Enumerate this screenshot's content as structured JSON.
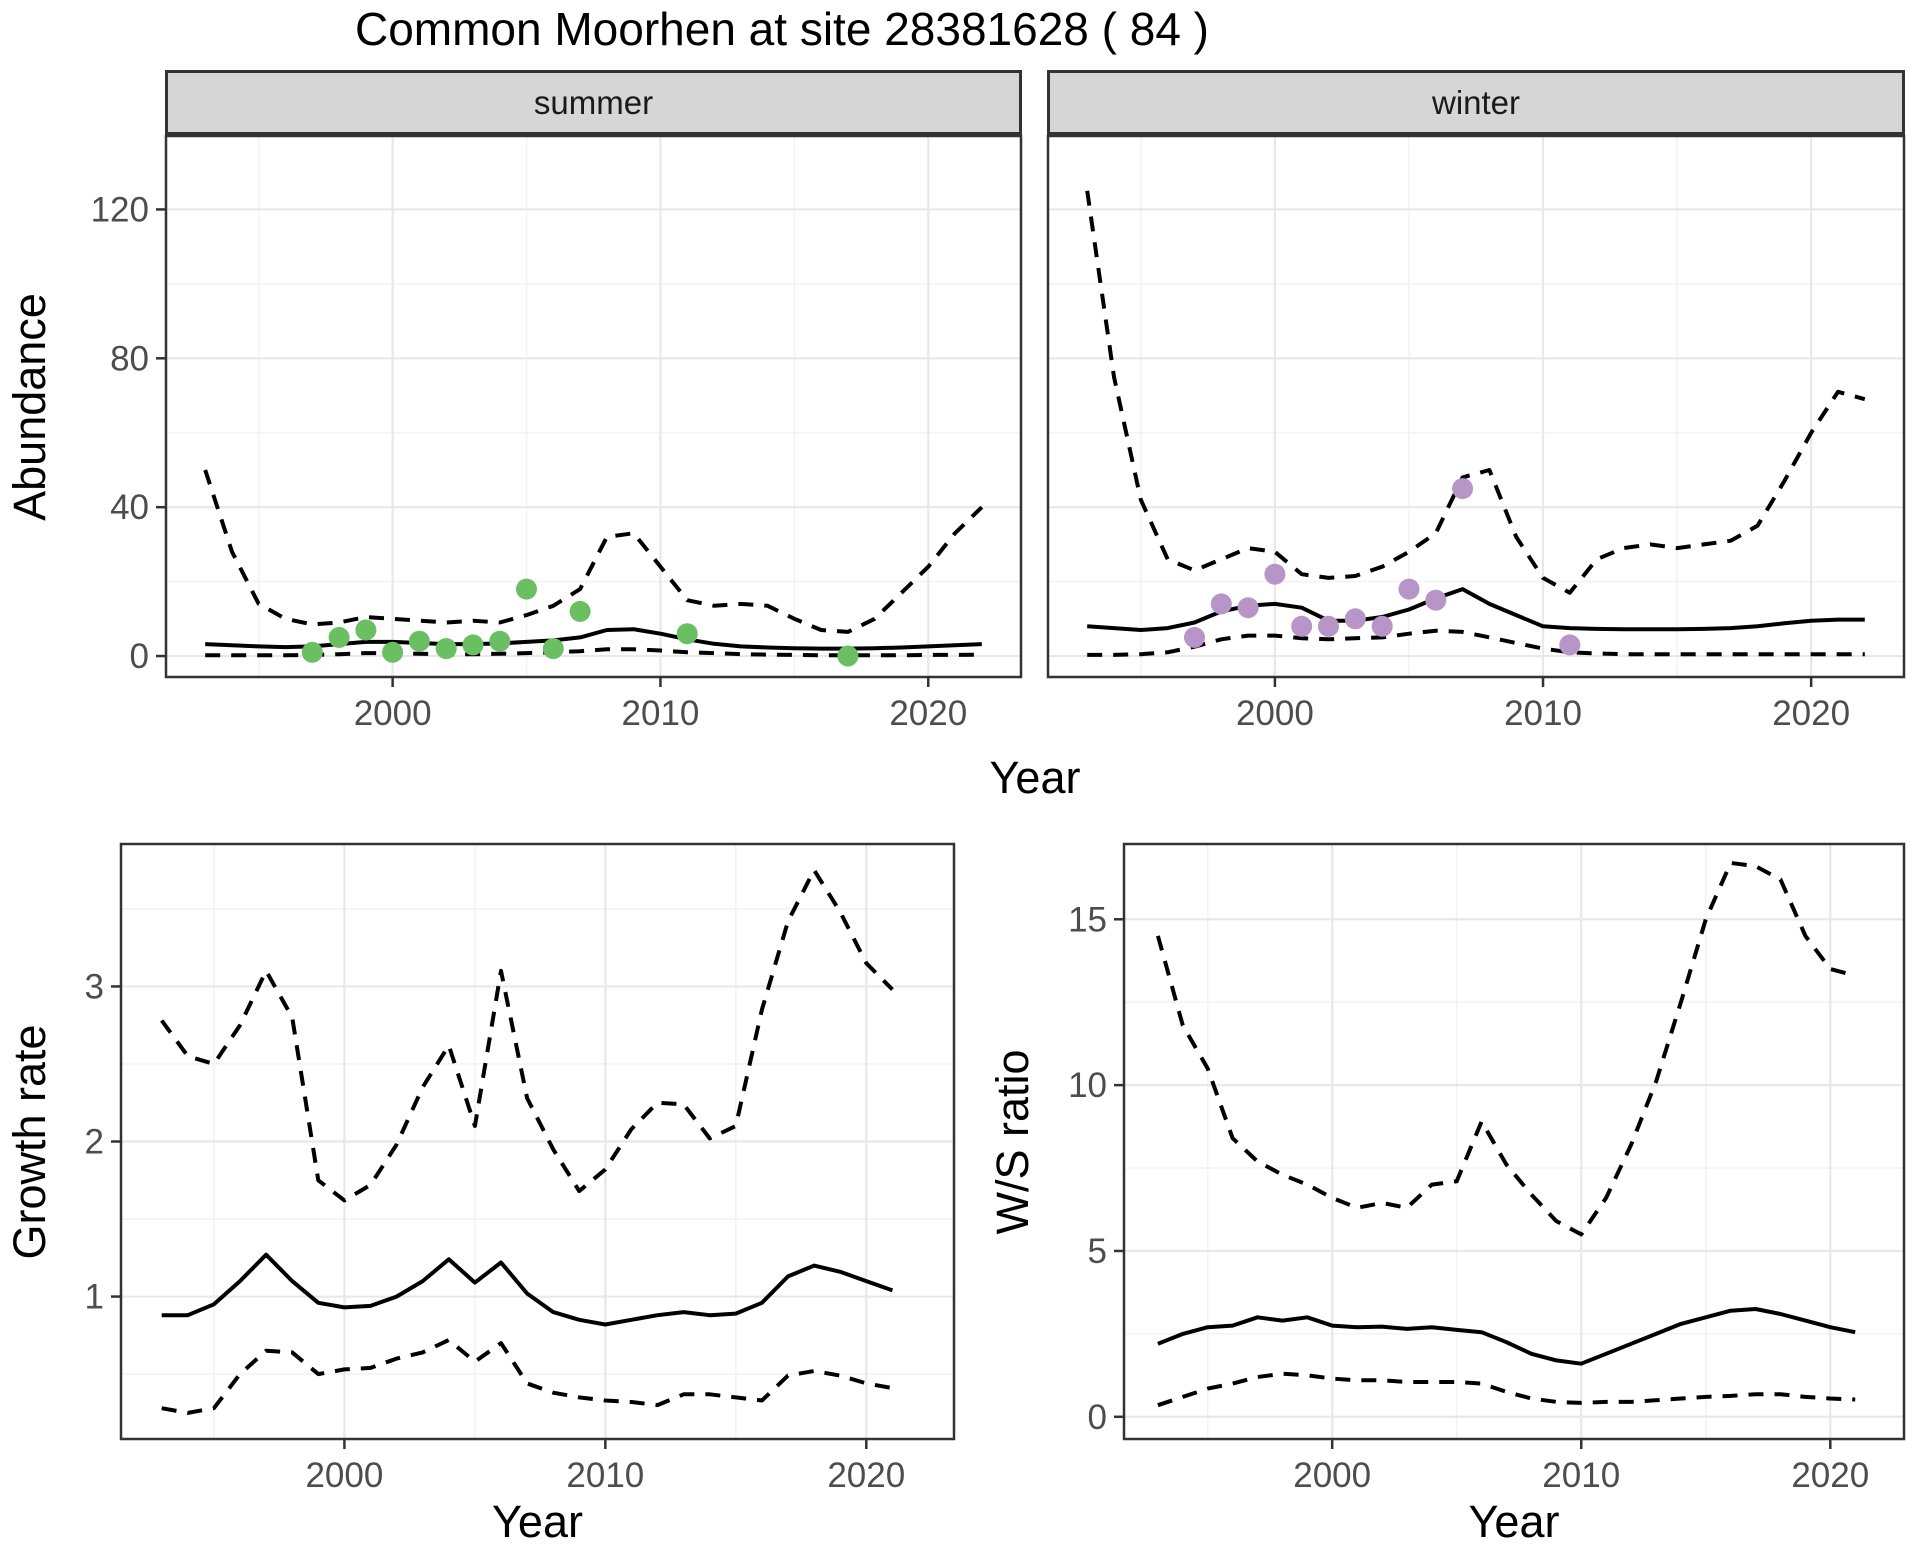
{
  "title": "Common Moorhen at site 28381628 ( 84 )",
  "axes": {
    "x_label": "Year",
    "abundance_label": "Abundance",
    "growth_rate_label": "Growth rate",
    "ws_ratio_label": "W/S ratio"
  },
  "colors": {
    "summer_point": "#6abf63",
    "winter_point": "#b795c8",
    "line": "#000000",
    "grid_major": "#e8e8e8",
    "grid_minor": "#f3f3f3",
    "panel_border": "#333333",
    "strip_fill": "#d6d6d6",
    "tick_text": "#4d4d4d"
  },
  "chart_data": [
    {
      "id": "abundance-summer",
      "type": "line",
      "facet_label": "summer",
      "xlabel": "Year",
      "ylabel": "Abundance",
      "xlim": [
        1991.5,
        2023.5
      ],
      "ylim": [
        -5.9,
        140
      ],
      "x_ticks": [
        2000,
        2010,
        2020
      ],
      "x_minor": [
        1995,
        2005,
        2015
      ],
      "y_ticks": [
        0,
        40,
        80,
        120
      ],
      "y_minor": [
        20,
        60,
        100
      ],
      "x": [
        1993,
        1994,
        1995,
        1996,
        1997,
        1998,
        1999,
        2000,
        2001,
        2002,
        2003,
        2004,
        2005,
        2006,
        2007,
        2008,
        2009,
        2010,
        2011,
        2012,
        2013,
        2014,
        2015,
        2016,
        2017,
        2018,
        2019,
        2020,
        2021,
        2022
      ],
      "series": [
        {
          "name": "median",
          "style": "solid",
          "values": [
            3.2,
            2.9,
            2.6,
            2.4,
            2.6,
            3.2,
            3.8,
            3.8,
            3.5,
            3.2,
            3.2,
            3.4,
            3.8,
            4.2,
            5.0,
            7.0,
            7.2,
            6.0,
            4.5,
            3.3,
            2.6,
            2.3,
            2.1,
            2.0,
            2.0,
            2.1,
            2.3,
            2.6,
            2.9,
            3.2
          ]
        },
        {
          "name": "upper-ci",
          "style": "dashed",
          "values": [
            50,
            28,
            14,
            10,
            8.5,
            9,
            10.5,
            10,
            9.5,
            9,
            9.5,
            9,
            11,
            13.5,
            18,
            32,
            33,
            24,
            15,
            13.5,
            14,
            13.5,
            10,
            7,
            6.5,
            10,
            17,
            24,
            33,
            40
          ]
        },
        {
          "name": "lower-ci",
          "style": "dashed",
          "values": [
            0.2,
            0.2,
            0.2,
            0.2,
            0.3,
            0.5,
            0.8,
            0.8,
            0.6,
            0.5,
            0.5,
            0.6,
            0.8,
            1.0,
            1.3,
            1.8,
            1.8,
            1.5,
            1.0,
            0.8,
            0.5,
            0.4,
            0.3,
            0.2,
            0.2,
            0.2,
            0.2,
            0.3,
            0.3,
            0.4
          ]
        }
      ],
      "points": {
        "name": "summer-observations",
        "color": "#6abf63",
        "data": [
          [
            1997,
            1
          ],
          [
            1998,
            5
          ],
          [
            1999,
            7
          ],
          [
            2000,
            1
          ],
          [
            2001,
            4
          ],
          [
            2002,
            2
          ],
          [
            2003,
            3
          ],
          [
            2004,
            4
          ],
          [
            2005,
            18
          ],
          [
            2006,
            2
          ],
          [
            2007,
            12
          ],
          [
            2011,
            6
          ],
          [
            2017,
            0
          ]
        ]
      }
    },
    {
      "id": "abundance-winter",
      "type": "line",
      "facet_label": "winter",
      "xlabel": "Year",
      "ylabel": "Abundance",
      "xlim": [
        1991.5,
        2023.5
      ],
      "ylim": [
        -5.9,
        140
      ],
      "x_ticks": [
        2000,
        2010,
        2020
      ],
      "x_minor": [
        1995,
        2005,
        2015
      ],
      "y_ticks": [
        0,
        40,
        80,
        120
      ],
      "y_minor": [
        20,
        60,
        100
      ],
      "x": [
        1993,
        1994,
        1995,
        1996,
        1997,
        1998,
        1999,
        2000,
        2001,
        2002,
        2003,
        2004,
        2005,
        2006,
        2007,
        2008,
        2009,
        2010,
        2011,
        2012,
        2013,
        2014,
        2015,
        2016,
        2017,
        2018,
        2019,
        2020,
        2021,
        2022
      ],
      "series": [
        {
          "name": "median",
          "style": "solid",
          "values": [
            8,
            7.5,
            7,
            7.5,
            9,
            12,
            13.5,
            14,
            13,
            9.5,
            9.5,
            10.5,
            12.5,
            15.5,
            18,
            14,
            11,
            8,
            7.5,
            7.3,
            7.2,
            7.2,
            7.2,
            7.3,
            7.5,
            8,
            8.8,
            9.5,
            9.8,
            9.8
          ]
        },
        {
          "name": "upper-ci",
          "style": "dashed",
          "values": [
            125,
            75,
            42,
            26,
            23,
            26,
            29,
            28,
            22,
            21,
            21.5,
            24,
            28,
            33,
            48,
            50,
            32,
            21,
            17,
            26,
            29,
            30,
            29,
            30,
            31,
            35,
            47,
            60,
            71,
            69
          ]
        },
        {
          "name": "lower-ci",
          "style": "dashed",
          "values": [
            0.3,
            0.3,
            0.5,
            1,
            2.5,
            4.5,
            5.5,
            5.5,
            4.8,
            4.5,
            4.8,
            5,
            6,
            6.8,
            6.5,
            5,
            3.5,
            2,
            1,
            0.7,
            0.5,
            0.5,
            0.5,
            0.5,
            0.5,
            0.5,
            0.5,
            0.5,
            0.5,
            0.5
          ]
        }
      ],
      "points": {
        "name": "winter-observations",
        "color": "#b795c8",
        "data": [
          [
            1997,
            5
          ],
          [
            1998,
            14
          ],
          [
            1999,
            13
          ],
          [
            2000,
            22
          ],
          [
            2001,
            8
          ],
          [
            2002,
            8
          ],
          [
            2003,
            10
          ],
          [
            2004,
            8
          ],
          [
            2005,
            18
          ],
          [
            2006,
            15
          ],
          [
            2007,
            45
          ],
          [
            2011,
            3
          ]
        ]
      }
    },
    {
      "id": "growth-rate",
      "type": "line",
      "facet_label": "",
      "xlabel": "Year",
      "ylabel": "Growth rate",
      "xlim": [
        1991.4,
        2023.4
      ],
      "ylim": [
        0.075,
        3.925
      ],
      "x_ticks": [
        2000,
        2010,
        2020
      ],
      "x_minor": [
        1995,
        2005,
        2015
      ],
      "y_ticks": [
        1,
        2,
        3
      ],
      "y_minor": [
        0.5,
        1.5,
        2.5,
        3.5
      ],
      "x": [
        1993,
        1994,
        1995,
        1996,
        1997,
        1998,
        1999,
        2000,
        2001,
        2002,
        2003,
        2004,
        2005,
        2006,
        2007,
        2008,
        2009,
        2010,
        2011,
        2012,
        2013,
        2014,
        2015,
        2016,
        2017,
        2018,
        2019,
        2020,
        2021
      ],
      "series": [
        {
          "name": "median",
          "style": "solid",
          "values": [
            0.88,
            0.88,
            0.95,
            1.1,
            1.27,
            1.1,
            0.96,
            0.93,
            0.94,
            1.0,
            1.1,
            1.24,
            1.09,
            1.22,
            1.02,
            0.9,
            0.85,
            0.82,
            0.85,
            0.88,
            0.9,
            0.88,
            0.89,
            0.96,
            1.13,
            1.2,
            1.16,
            1.1,
            1.04
          ]
        },
        {
          "name": "upper-ci",
          "style": "dashed",
          "values": [
            2.78,
            2.55,
            2.5,
            2.75,
            3.1,
            2.8,
            1.75,
            1.62,
            1.72,
            1.98,
            2.35,
            2.62,
            2.1,
            3.1,
            2.28,
            1.95,
            1.68,
            1.82,
            2.08,
            2.25,
            2.24,
            2.02,
            2.1,
            2.85,
            3.42,
            3.75,
            3.48,
            3.15,
            2.98
          ]
        },
        {
          "name": "lower-ci",
          "style": "dashed",
          "values": [
            0.28,
            0.25,
            0.28,
            0.5,
            0.65,
            0.64,
            0.5,
            0.53,
            0.54,
            0.6,
            0.64,
            0.72,
            0.58,
            0.7,
            0.44,
            0.38,
            0.35,
            0.33,
            0.32,
            0.3,
            0.37,
            0.37,
            0.35,
            0.33,
            0.49,
            0.52,
            0.49,
            0.44,
            0.41
          ]
        }
      ],
      "points": null
    },
    {
      "id": "ws-ratio",
      "type": "line",
      "facet_label": "",
      "xlabel": "Year",
      "ylabel": "W/S ratio",
      "xlim": [
        1991.6,
        2023.0
      ],
      "ylim": [
        -0.7,
        17.3
      ],
      "x_ticks": [
        2000,
        2010,
        2020
      ],
      "x_minor": [
        1995,
        2005,
        2015
      ],
      "y_ticks": [
        0,
        5,
        10,
        15
      ],
      "y_minor": [
        2.5,
        7.5,
        12.5
      ],
      "x": [
        1993,
        1994,
        1995,
        1996,
        1997,
        1998,
        1999,
        2000,
        2001,
        2002,
        2003,
        2004,
        2005,
        2006,
        2007,
        2008,
        2009,
        2010,
        2011,
        2012,
        2013,
        2014,
        2015,
        2016,
        2017,
        2018,
        2019,
        2020,
        2021
      ],
      "series": [
        {
          "name": "median",
          "style": "solid",
          "values": [
            2.2,
            2.5,
            2.7,
            2.75,
            3.0,
            2.9,
            3.0,
            2.75,
            2.7,
            2.72,
            2.65,
            2.7,
            2.62,
            2.55,
            2.25,
            1.9,
            1.7,
            1.6,
            1.9,
            2.2,
            2.5,
            2.8,
            3.0,
            3.2,
            3.25,
            3.1,
            2.9,
            2.7,
            2.55
          ]
        },
        {
          "name": "upper-ci",
          "style": "dashed",
          "values": [
            14.5,
            11.8,
            10.5,
            8.4,
            7.7,
            7.3,
            7.0,
            6.6,
            6.3,
            6.45,
            6.3,
            7.0,
            7.1,
            8.9,
            7.6,
            6.7,
            5.9,
            5.5,
            6.6,
            8.2,
            10.1,
            12.5,
            15.0,
            16.7,
            16.6,
            16.2,
            14.5,
            13.5,
            13.3
          ]
        },
        {
          "name": "lower-ci",
          "style": "dashed",
          "values": [
            0.35,
            0.6,
            0.85,
            1.0,
            1.2,
            1.3,
            1.25,
            1.15,
            1.1,
            1.1,
            1.05,
            1.05,
            1.05,
            1.0,
            0.75,
            0.55,
            0.45,
            0.42,
            0.45,
            0.45,
            0.5,
            0.55,
            0.6,
            0.63,
            0.68,
            0.68,
            0.6,
            0.55,
            0.52
          ]
        }
      ],
      "points": null
    }
  ]
}
